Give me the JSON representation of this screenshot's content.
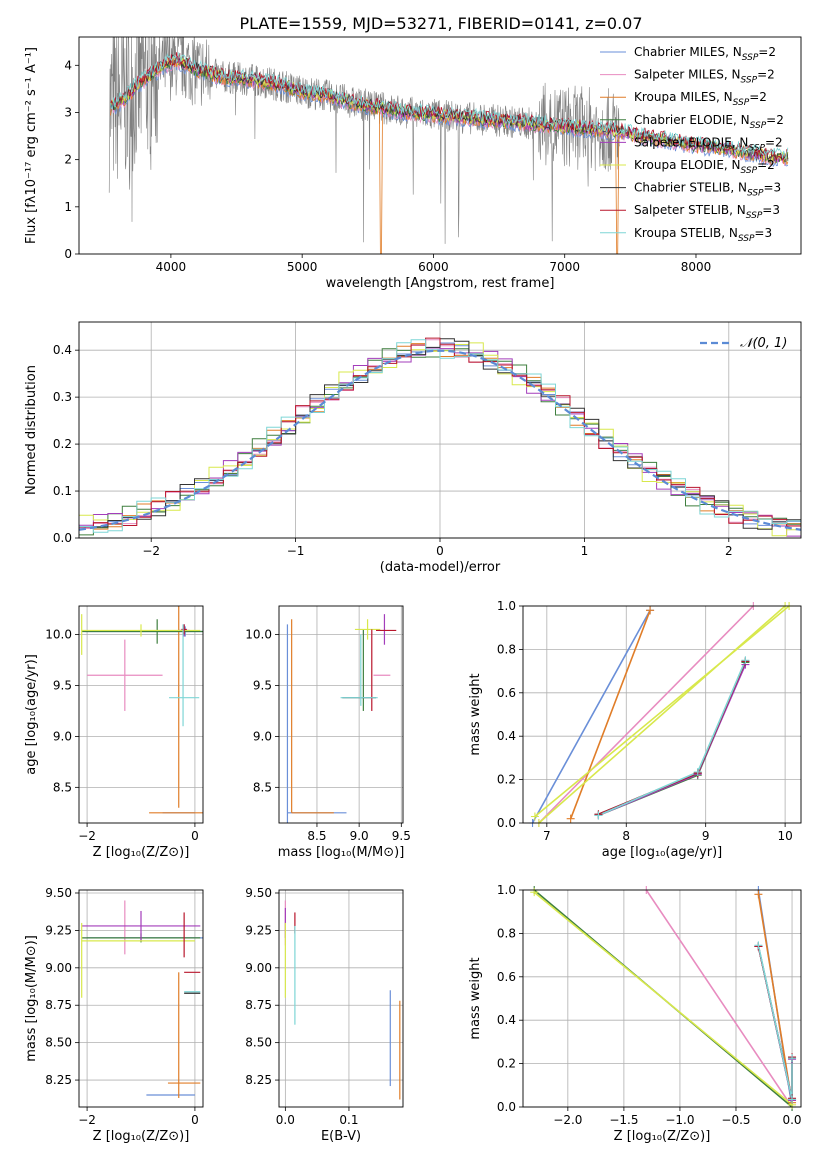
{
  "figure_title": "PLATE=1559, MJD=53271, FIBERID=0141, z=0.07",
  "colors": {
    "series": [
      "#6a8fd8",
      "#e88cc0",
      "#e07d28",
      "#3f7f3f",
      "#a33dbb",
      "#d8e84c",
      "#333333",
      "#b8162c",
      "#7ed6d6"
    ],
    "data": "#808080"
  },
  "legend_labels": [
    [
      "Chabrier MILES, N",
      "SSP",
      "=2"
    ],
    [
      "Salpeter MILES, N",
      "SSP",
      "=2"
    ],
    [
      "Kroupa MILES, N",
      "SSP",
      "=2"
    ],
    [
      "Chabrier ELODIE, N",
      "SSP",
      "=2"
    ],
    [
      "Salpeter ELODIE, N",
      "SSP",
      "=2"
    ],
    [
      "Kroupa ELODIE, N",
      "SSP",
      "=2"
    ],
    [
      "Chabrier STELIB, N",
      "SSP",
      "=3"
    ],
    [
      "Salpeter STELIB, N",
      "SSP",
      "=3"
    ],
    [
      "Kroupa STELIB, N",
      "SSP",
      "=3"
    ]
  ],
  "chart_data": [
    {
      "type": "line",
      "id": "spectrum",
      "xlabel": "wavelength [Angstrom, rest frame]",
      "ylabel": "Flux [fλ10⁻¹⁷ erg cm⁻² s⁻¹ A⁻¹]",
      "xlim": [
        3300,
        8800
      ],
      "ylim": [
        0,
        4.6
      ],
      "xticks": [
        4000,
        5000,
        6000,
        7000,
        8000
      ],
      "yticks": [
        0,
        1,
        2,
        3,
        4
      ],
      "legend": "upper-right",
      "continuum": {
        "x": [
          3550,
          3650,
          3750,
          3850,
          3950,
          4050,
          4200,
          4400,
          4600,
          4800,
          5000,
          5200,
          5400,
          5600,
          5800,
          6000,
          6200,
          6400,
          6600,
          6800,
          7000,
          7200,
          7400,
          7600,
          7800,
          8000,
          8200,
          8400,
          8600
        ],
        "y": [
          3.1,
          3.3,
          3.6,
          3.8,
          4.0,
          4.1,
          3.9,
          3.75,
          3.7,
          3.6,
          3.45,
          3.35,
          3.2,
          3.1,
          3.0,
          2.95,
          2.9,
          2.85,
          2.8,
          2.75,
          2.7,
          2.65,
          2.6,
          2.5,
          2.4,
          2.3,
          2.25,
          2.15,
          2.05
        ]
      },
      "data_xrange": [
        3530,
        7420
      ],
      "model_xrange": [
        3540,
        8700
      ]
    },
    {
      "type": "line",
      "id": "residual-histogram",
      "xlabel": "(data-model)/error",
      "ylabel": "Normed distribution",
      "xlim": [
        -2.5,
        2.5
      ],
      "ylim": [
        0,
        0.46
      ],
      "xticks": [
        -2,
        -1,
        0,
        1,
        2
      ],
      "yticks": [
        0.0,
        0.1,
        0.2,
        0.3,
        0.4
      ],
      "legend_label": "𝒩(0, 1)",
      "legend": "upper-right",
      "bin_width": 0.1,
      "histogram_jitter": [
        0.0,
        0.012,
        -0.01,
        0.018,
        -0.014,
        0.022,
        -0.02,
        0.016,
        0.026
      ]
    },
    {
      "type": "scatter",
      "id": "age-vs-Z",
      "xlabel": "Z [log₁₀(Z/Z⊙)]",
      "ylabel": "age  [log₁₀(age/yr)]",
      "xlim": [
        -2.15,
        0.15
      ],
      "ylim": [
        8.15,
        10.28
      ],
      "xticks": [
        -2,
        0
      ],
      "yticks": [
        8.5,
        9.0,
        9.5,
        10.0
      ],
      "points": [
        {
          "s": 0,
          "x": -0.18,
          "y": 10.03,
          "xerr": 1.85,
          "yerr": 0.05
        },
        {
          "s": 0,
          "x": -0.3,
          "y": 8.25,
          "xerr": 0.3,
          "yerr": 0.0
        },
        {
          "s": 1,
          "x": -1.3,
          "y": 9.6,
          "xerr": 0.7,
          "yerr": 0.35
        },
        {
          "s": 2,
          "x": -0.3,
          "y": 8.25,
          "xerr": 0.55,
          "yerr": 0.0
        },
        {
          "s": 2,
          "x": -0.3,
          "y": 9.3,
          "xerr": 0.0,
          "yerr": 1.0
        },
        {
          "s": 3,
          "x": -0.7,
          "y": 10.03,
          "xerr": 1.4,
          "yerr": 0.12
        },
        {
          "s": 4,
          "x": -0.2,
          "y": 10.04,
          "xerr": 0.1,
          "yerr": 0.06
        },
        {
          "s": 5,
          "x": -1.0,
          "y": 10.04,
          "xerr": 1.1,
          "yerr": 0.06
        },
        {
          "s": 5,
          "x": -2.1,
          "y": 10.0,
          "xerr": 0.0,
          "yerr": 0.2
        },
        {
          "s": 7,
          "x": -0.2,
          "y": 10.05,
          "xerr": 0.05,
          "yerr": 0.05
        },
        {
          "s": 8,
          "x": -0.2,
          "y": 9.38,
          "xerr": 0.28,
          "yerr": 0.0
        },
        {
          "s": 8,
          "x": -0.22,
          "y": 9.6,
          "xerr": 0.0,
          "yerr": 0.5
        }
      ]
    },
    {
      "type": "scatter",
      "id": "age-vs-mass",
      "xlabel": "mass [log₁₀(M/M⊙)]",
      "ylabel": "",
      "xlim": [
        8.05,
        9.52
      ],
      "ylim": [
        8.15,
        10.28
      ],
      "xticks": [
        8.5,
        9.0,
        9.5
      ],
      "yticks": [
        8.5,
        9.0,
        9.5,
        10.0
      ],
      "points": [
        {
          "s": 0,
          "x": 8.15,
          "y": 9.1,
          "xerr": 0.0,
          "yerr": 1.0
        },
        {
          "s": 0,
          "x": 8.5,
          "y": 8.25,
          "xerr": 0.35,
          "yerr": 0.0
        },
        {
          "s": 1,
          "x": 9.27,
          "y": 9.6,
          "xerr": 0.1,
          "yerr": 0.0
        },
        {
          "s": 2,
          "x": 8.2,
          "y": 9.2,
          "xerr": 0.0,
          "yerr": 0.95
        },
        {
          "s": 2,
          "x": 8.45,
          "y": 8.25,
          "xerr": 0.25,
          "yerr": 0.0
        },
        {
          "s": 3,
          "x": 9.05,
          "y": 9.65,
          "xerr": 0.0,
          "yerr": 0.4
        },
        {
          "s": 4,
          "x": 9.3,
          "y": 10.05,
          "xerr": 0.0,
          "yerr": 0.15
        },
        {
          "s": 5,
          "x": 9.1,
          "y": 10.05,
          "xerr": 0.15,
          "yerr": 0.1
        },
        {
          "s": 6,
          "x": 9.0,
          "y": 9.38,
          "xerr": 0.2,
          "yerr": 0.0
        },
        {
          "s": 7,
          "x": 9.15,
          "y": 9.65,
          "xerr": 0.0,
          "yerr": 0.4
        },
        {
          "s": 7,
          "x": 9.32,
          "y": 10.04,
          "xerr": 0.12,
          "yerr": 0.0
        },
        {
          "s": 8,
          "x": 9.02,
          "y": 9.65,
          "xerr": 0.0,
          "yerr": 0.35
        },
        {
          "s": 8,
          "x": 9.0,
          "y": 9.38,
          "xerr": 0.22,
          "yerr": 0.0
        }
      ]
    },
    {
      "type": "line",
      "id": "massweight-vs-age",
      "xlabel": "age  [log₁₀(age/yr)]",
      "ylabel": "mass weight",
      "xlim": [
        6.7,
        10.2
      ],
      "ylim": [
        0,
        1.0
      ],
      "xticks": [
        7,
        8,
        9,
        10
      ],
      "yticks": [
        0.0,
        0.2,
        0.4,
        0.6,
        0.8,
        1.0
      ],
      "series": [
        {
          "s": 0,
          "x": [
            6.82,
            8.3
          ],
          "y": [
            0.0,
            0.98
          ]
        },
        {
          "s": 1,
          "x": [
            6.9,
            9.6
          ],
          "y": [
            0.0,
            1.0
          ]
        },
        {
          "s": 2,
          "x": [
            7.3,
            8.3
          ],
          "y": [
            0.02,
            0.98
          ]
        },
        {
          "s": 3,
          "x": [
            7.65,
            8.9,
            9.5
          ],
          "y": [
            0.035,
            0.22,
            0.74
          ]
        },
        {
          "s": 4,
          "x": [
            7.65,
            8.9,
            9.5
          ],
          "y": [
            0.035,
            0.225,
            0.73
          ]
        },
        {
          "s": 5,
          "x": [
            6.85,
            10.05
          ],
          "y": [
            0.03,
            1.0
          ]
        },
        {
          "s": 6,
          "x": [
            7.65,
            8.9,
            9.5
          ],
          "y": [
            0.04,
            0.23,
            0.745
          ]
        },
        {
          "s": 7,
          "x": [
            7.65,
            8.9,
            9.5
          ],
          "y": [
            0.04,
            0.23,
            0.745
          ]
        },
        {
          "s": 8,
          "x": [
            7.65,
            8.9,
            9.5
          ],
          "y": [
            0.035,
            0.235,
            0.75
          ]
        },
        {
          "s": 5,
          "x": [
            6.9,
            10.0
          ],
          "y": [
            0.0,
            1.0
          ]
        }
      ]
    },
    {
      "type": "scatter",
      "id": "mass-vs-Z",
      "xlabel": "Z [log₁₀(Z/Z⊙)]",
      "ylabel": "mass [log₁₀(M/M⊙)]",
      "xlim": [
        -2.15,
        0.15
      ],
      "ylim": [
        8.07,
        9.52
      ],
      "xticks": [
        -2,
        0
      ],
      "yticks": [
        8.25,
        8.5,
        8.75,
        9.0,
        9.25,
        9.5
      ],
      "points": [
        {
          "s": 0,
          "x": -0.45,
          "y": 8.15,
          "xerr": 0.45,
          "yerr": 0.0
        },
        {
          "s": 0,
          "x": -0.9,
          "y": 9.2,
          "xerr": 1.1,
          "yerr": 0.0
        },
        {
          "s": 1,
          "x": -1.3,
          "y": 9.27,
          "xerr": 0.0,
          "yerr": 0.18
        },
        {
          "s": 2,
          "x": -0.2,
          "y": 8.23,
          "xerr": 0.3,
          "yerr": 0.0
        },
        {
          "s": 2,
          "x": -0.3,
          "y": 8.55,
          "xerr": 0.0,
          "yerr": 0.42
        },
        {
          "s": 3,
          "x": -1.0,
          "y": 9.2,
          "xerr": 1.1,
          "yerr": 0.03
        },
        {
          "s": 4,
          "x": -1.0,
          "y": 9.28,
          "xerr": 1.1,
          "yerr": 0.1
        },
        {
          "s": 5,
          "x": -1.05,
          "y": 9.18,
          "xerr": 1.05,
          "yerr": 0.0
        },
        {
          "s": 5,
          "x": -2.1,
          "y": 9.05,
          "xerr": 0.0,
          "yerr": 0.25
        },
        {
          "s": 6,
          "x": -0.05,
          "y": 8.83,
          "xerr": 0.15,
          "yerr": 0.0
        },
        {
          "s": 7,
          "x": -0.05,
          "y": 8.97,
          "xerr": 0.15,
          "yerr": 0.0
        },
        {
          "s": 7,
          "x": -0.2,
          "y": 9.22,
          "xerr": 0.0,
          "yerr": 0.15
        },
        {
          "s": 8,
          "x": -0.05,
          "y": 8.84,
          "xerr": 0.15,
          "yerr": 0.0
        }
      ]
    },
    {
      "type": "scatter",
      "id": "mass-vs-EBV",
      "xlabel": "E(B-V)",
      "ylabel": "",
      "xlim": [
        -0.01,
        0.185
      ],
      "ylim": [
        8.07,
        9.52
      ],
      "xticks": [
        0.0,
        0.1
      ],
      "yticks": [
        8.25,
        8.5,
        8.75,
        9.0,
        9.25,
        9.5
      ],
      "points": [
        {
          "s": 0,
          "x": 0.165,
          "y": 8.53,
          "xerr": 0.0,
          "yerr": 0.32
        },
        {
          "s": 1,
          "x": 0.0,
          "y": 9.3,
          "xerr": 0.0,
          "yerr": 0.15
        },
        {
          "s": 2,
          "x": 0.18,
          "y": 8.45,
          "xerr": 0.0,
          "yerr": 0.33
        },
        {
          "s": 4,
          "x": 0.0,
          "y": 9.3,
          "xerr": 0.0,
          "yerr": 0.1
        },
        {
          "s": 5,
          "x": 0.0,
          "y": 9.05,
          "xerr": 0.0,
          "yerr": 0.25
        },
        {
          "s": 7,
          "x": 0.015,
          "y": 9.3,
          "xerr": 0.0,
          "yerr": 0.07
        },
        {
          "s": 8,
          "x": 0.015,
          "y": 8.95,
          "xerr": 0.0,
          "yerr": 0.33
        }
      ]
    },
    {
      "type": "line",
      "id": "massweight-vs-Z",
      "xlabel": "Z [log₁₀(Z/Z⊙)]",
      "ylabel": "mass weight",
      "xlim": [
        -2.4,
        0.08
      ],
      "ylim": [
        0,
        1.0
      ],
      "xticks": [
        -2.0,
        -1.5,
        -1.0,
        -0.5,
        0.0
      ],
      "yticks": [
        0.0,
        0.2,
        0.4,
        0.6,
        0.8,
        1.0
      ],
      "series": [
        {
          "s": 0,
          "x": [
            -0.3,
            0.0
          ],
          "y": [
            1.0,
            0.0
          ]
        },
        {
          "s": 1,
          "x": [
            -1.3,
            0.0
          ],
          "y": [
            1.0,
            0.0
          ]
        },
        {
          "s": 2,
          "x": [
            -0.3,
            0.0
          ],
          "y": [
            0.98,
            0.02
          ]
        },
        {
          "s": 3,
          "x": [
            -2.3,
            0.0
          ],
          "y": [
            1.0,
            0.0
          ]
        },
        {
          "s": 4,
          "x": [
            -0.3,
            0.0,
            0.0
          ],
          "y": [
            0.74,
            0.03,
            0.22
          ]
        },
        {
          "s": 5,
          "x": [
            -2.3,
            0.0
          ],
          "y": [
            0.99,
            0.01
          ]
        },
        {
          "s": 6,
          "x": [
            -0.3,
            0.0,
            0.0
          ],
          "y": [
            0.74,
            0.035,
            0.225
          ]
        },
        {
          "s": 7,
          "x": [
            -0.3,
            0.0,
            0.0
          ],
          "y": [
            0.74,
            0.04,
            0.23
          ]
        },
        {
          "s": 8,
          "x": [
            -0.3,
            0.0,
            0.0
          ],
          "y": [
            0.745,
            0.035,
            0.225
          ]
        }
      ]
    }
  ]
}
